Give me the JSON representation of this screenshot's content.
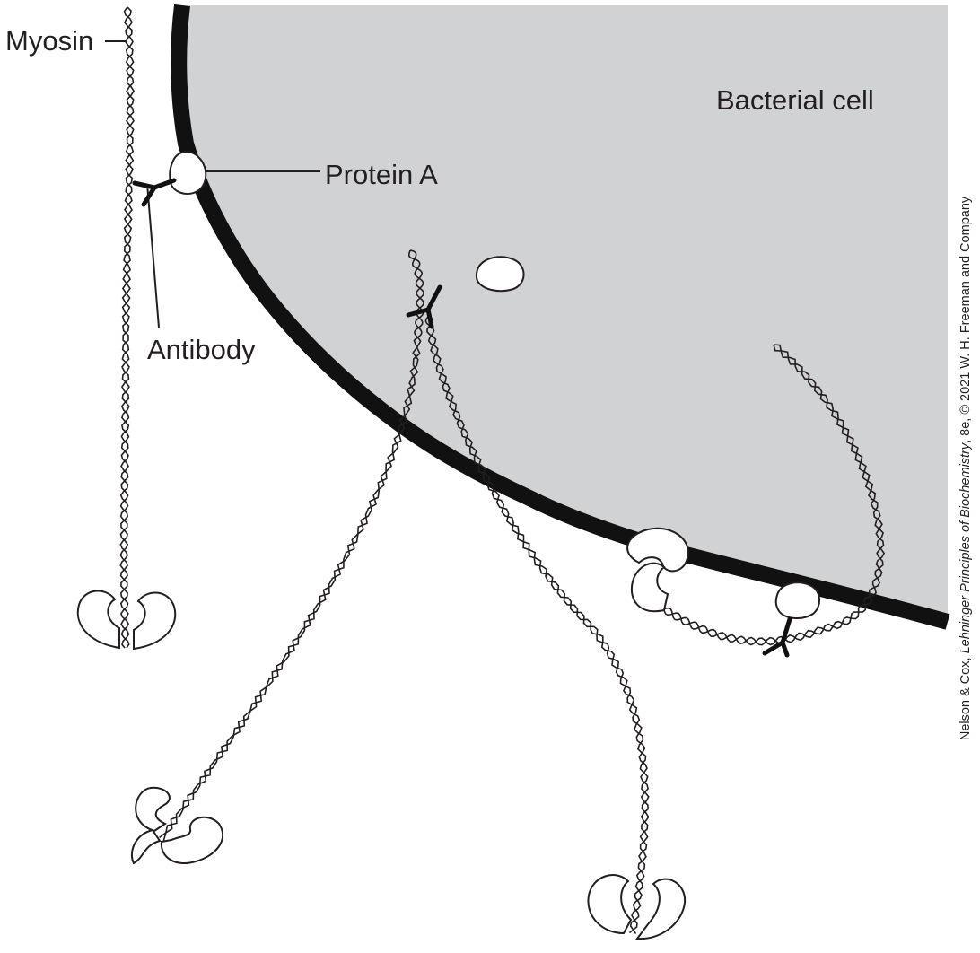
{
  "labels": {
    "myosin": "Myosin",
    "protein_a": "Protein A",
    "antibody": "Antibody",
    "bacterial_cell": "Bacterial cell"
  },
  "credit": {
    "prefix": "Nelson & Cox, ",
    "title": "Lehninger Principles of Biochemistry",
    "suffix": ", 8e, © 2021 W. H. Freeman and Company"
  },
  "colors": {
    "cell_fill": "#d1d2d4",
    "membrane": "#111111",
    "ink": "#231f20",
    "white": "#ffffff"
  },
  "icons": {
    "protein_a": "white-blob",
    "antibody": "y-shape",
    "myosin": "twisted-coiled-coil-with-two-heads"
  }
}
